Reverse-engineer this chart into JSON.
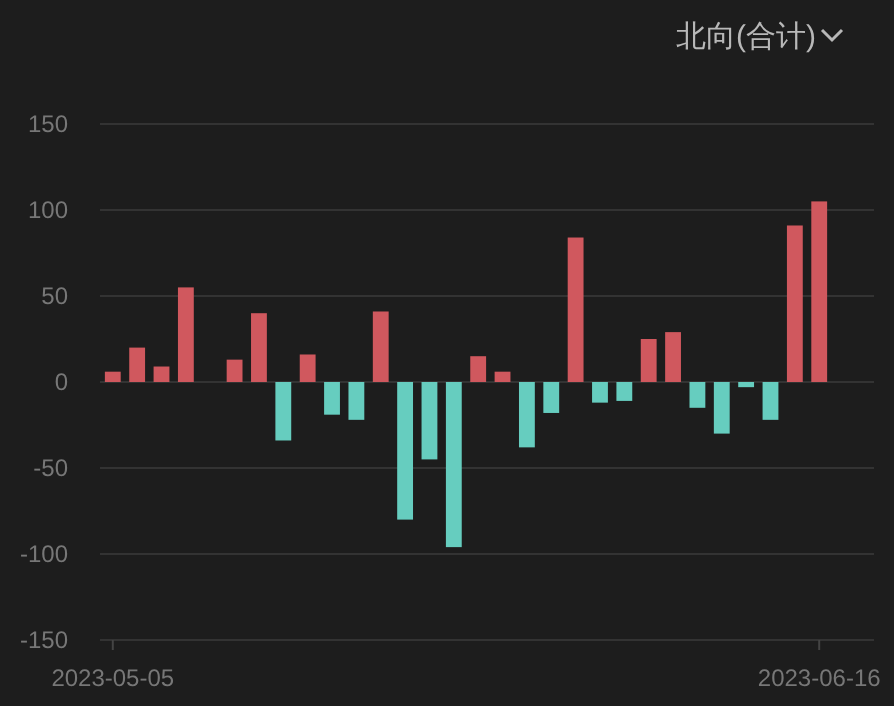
{
  "chart_data": {
    "type": "bar",
    "title": "北向(合计)",
    "categories": [
      "2023-05-05",
      null,
      null,
      null,
      null,
      null,
      null,
      null,
      null,
      null,
      null,
      null,
      null,
      null,
      null,
      null,
      null,
      null,
      null,
      null,
      null,
      null,
      null,
      null,
      null,
      null,
      null,
      null,
      null,
      "2023-06-16"
    ],
    "values": [
      6,
      20,
      9,
      55,
      0,
      13,
      40,
      -34,
      16,
      -19,
      -22,
      41,
      -80,
      -45,
      -96,
      15,
      6,
      -38,
      -18,
      84,
      -12,
      -11,
      25,
      29,
      -15,
      -30,
      -3,
      -22,
      91,
      105
    ],
    "colors": [
      "#d0585e",
      "#d0585e",
      "#d0585e",
      "#d0585e",
      "#d0585e",
      "#d0585e",
      "#d0585e",
      "#66cdbf",
      "#d0585e",
      "#66cdbf",
      "#66cdbf",
      "#d0585e",
      "#66cdbf",
      "#66cdbf",
      "#66cdbf",
      "#d0585e",
      "#d0585e",
      "#66cdbf",
      "#66cdbf",
      "#d0585e",
      "#66cdbf",
      "#66cdbf",
      "#d0585e",
      "#d0585e",
      "#66cdbf",
      "#66cdbf",
      "#66cdbf",
      "#66cdbf",
      "#d0585e",
      "#d0585e"
    ],
    "ylim": [
      -150,
      150
    ],
    "yticks": [
      -150,
      -100,
      -50,
      0,
      50,
      100,
      150
    ],
    "grid": "y"
  }
}
